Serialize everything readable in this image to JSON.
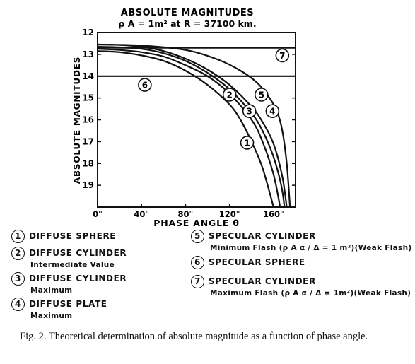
{
  "chart_data": {
    "type": "line",
    "title_line1": "ABSOLUTE  MAGNITUDES",
    "title_line2": "ρ A = 1m² at R = 37100 km.",
    "xlabel": "PHASE  ANGLE  θ",
    "ylabel": "ABSOLUTE  MAGNITUDES",
    "xlim": [
      0,
      180
    ],
    "ylim": [
      12,
      20
    ],
    "y_inverted": true,
    "x_ticks": [
      0,
      40,
      80,
      120,
      160
    ],
    "x_tick_labels": [
      "0°",
      "40°",
      "80°",
      "120°",
      "160°"
    ],
    "y_ticks": [
      12,
      13,
      14,
      15,
      16,
      17,
      18,
      19
    ],
    "y_tick_labels": [
      "12",
      "13",
      "14",
      "15",
      "16",
      "17",
      "18",
      "19"
    ],
    "series": [
      {
        "id": "1",
        "name": "DIFFUSE SPHERE",
        "x": [
          0,
          20,
          40,
          60,
          80,
          100,
          120,
          130,
          140,
          150,
          160
        ],
        "y": [
          12.85,
          12.9,
          13.05,
          13.3,
          13.75,
          14.4,
          15.3,
          16.0,
          17.0,
          18.2,
          20.0
        ]
      },
      {
        "id": "2",
        "name": "DIFFUSE CYLINDER - Intermediate Value",
        "x": [
          0,
          20,
          40,
          60,
          80,
          100,
          120,
          140,
          150,
          160,
          166
        ],
        "y": [
          12.75,
          12.8,
          12.9,
          13.1,
          13.5,
          14.0,
          14.8,
          16.0,
          17.0,
          18.5,
          20.0
        ]
      },
      {
        "id": "3",
        "name": "DIFFUSE CYLINDER - Maximum",
        "x": [
          0,
          20,
          40,
          60,
          80,
          100,
          120,
          140,
          150,
          160,
          167,
          170
        ],
        "y": [
          12.65,
          12.68,
          12.75,
          12.95,
          13.3,
          13.85,
          14.6,
          15.7,
          16.5,
          17.7,
          19.0,
          20.0
        ]
      },
      {
        "id": "4",
        "name": "DIFFUSE PLATE - Maximum",
        "x": [
          0,
          20,
          40,
          60,
          80,
          100,
          120,
          140,
          150,
          160,
          168,
          172
        ],
        "y": [
          12.55,
          12.57,
          12.65,
          12.85,
          13.2,
          13.7,
          14.4,
          15.4,
          16.1,
          17.1,
          18.6,
          20.0
        ]
      },
      {
        "id": "5",
        "name": "SPECULAR CYLINDER - Minimum Flash (ρAα/Δ = 1m²)(Weak Flash)",
        "x": [
          0,
          40,
          80,
          110,
          130,
          145,
          155,
          163,
          168,
          172,
          175
        ],
        "y": [
          12.55,
          12.6,
          12.8,
          13.25,
          13.75,
          14.3,
          14.9,
          15.6,
          16.5,
          18.0,
          20.0
        ]
      },
      {
        "id": "6",
        "name": "SPECULAR SPHERE",
        "x": [
          0,
          180
        ],
        "y": [
          14.0,
          14.0
        ]
      },
      {
        "id": "7",
        "name": "SPECULAR CYLINDER - Maximum Flash (ρAα/Δ = 1m²)(Weak Flash)",
        "x": [
          0,
          180
        ],
        "y": [
          12.7,
          12.7
        ]
      }
    ],
    "curve_labels": [
      {
        "id": "1",
        "x": 136,
        "y": 17.05
      },
      {
        "id": "2",
        "x": 120,
        "y": 14.85
      },
      {
        "id": "3",
        "x": 138,
        "y": 15.6
      },
      {
        "id": "4",
        "x": 159,
        "y": 15.6
      },
      {
        "id": "5",
        "x": 149,
        "y": 14.85
      },
      {
        "id": "6",
        "x": 43,
        "y": 14.4
      },
      {
        "id": "7",
        "x": 168,
        "y": 13.05
      }
    ]
  },
  "legend": {
    "left": [
      {
        "num": "1",
        "label": "DIFFUSE  SPHERE",
        "sub": ""
      },
      {
        "num": "2",
        "label": "DIFFUSE  CYLINDER",
        "sub": "Intermediate  Value"
      },
      {
        "num": "3",
        "label": "DIFFUSE  CYLINDER",
        "sub": "Maximum"
      },
      {
        "num": "4",
        "label": "DIFFUSE  PLATE",
        "sub": "Maximum"
      }
    ],
    "right": [
      {
        "num": "5",
        "label": "SPECULAR  CYLINDER",
        "sub": "Minimum  Flash  (ρ A α / Δ = 1 m²)(Weak  Flash)"
      },
      {
        "num": "6",
        "label": "SPECULAR  SPHERE",
        "sub": ""
      },
      {
        "num": "7",
        "label": "SPECULAR  CYLINDER",
        "sub": "Maximum  Flash  (ρ A α / Δ = 1m²)(Weak  Flash)"
      }
    ]
  },
  "caption": "Fig. 2.    Theoretical determination of absolute magnitude as a function of phase angle."
}
